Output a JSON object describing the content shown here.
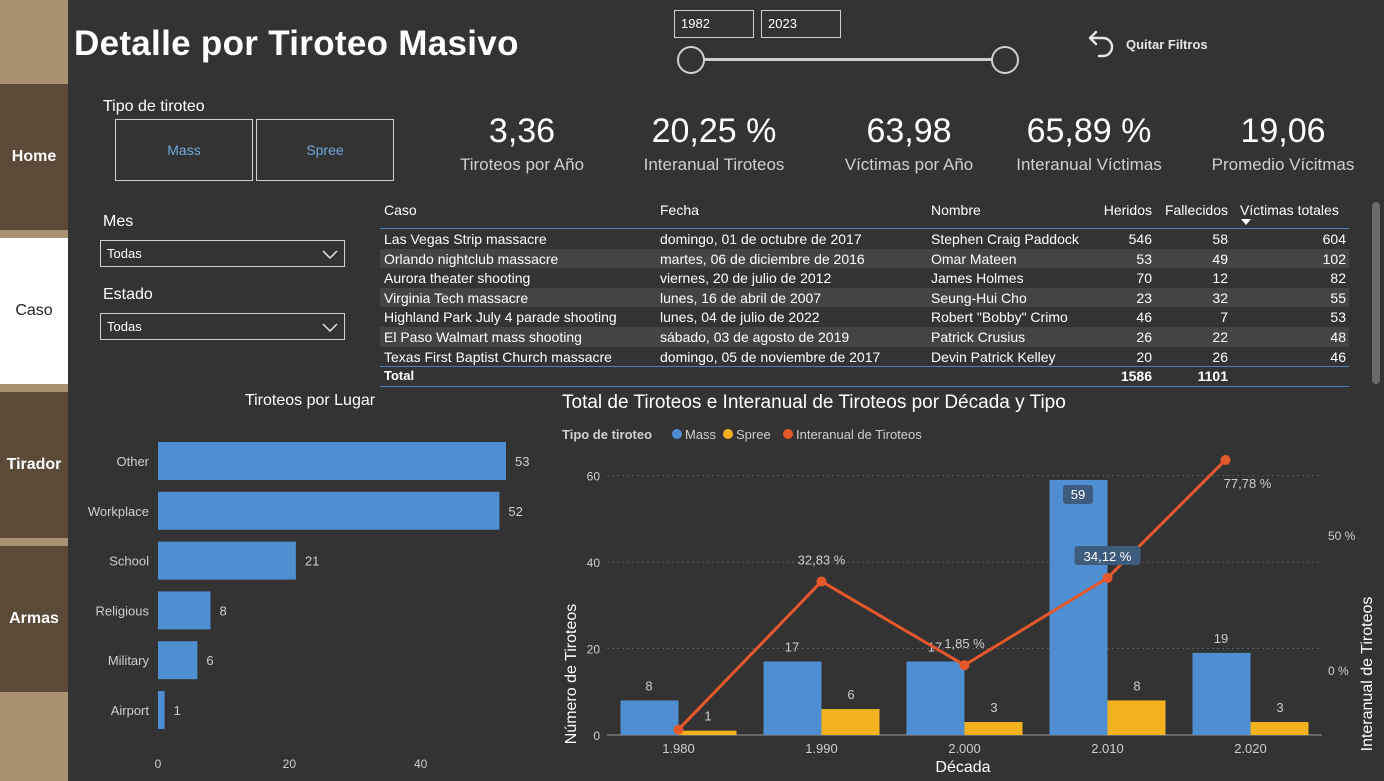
{
  "title": "Detalle por Tiroteo Masivo",
  "sidebar": {
    "items": [
      {
        "label": "Home"
      },
      {
        "label": "Caso"
      },
      {
        "label": "Tirador"
      },
      {
        "label": "Armas"
      }
    ]
  },
  "year_range": {
    "from": "1982",
    "to": "2023"
  },
  "clear_filters_label": "Quitar Filtros",
  "slicers": {
    "type_title": "Tipo de tiroteo",
    "type_options": [
      "Mass",
      "Spree"
    ],
    "month_title": "Mes",
    "month_value": "Todas",
    "state_title": "Estado",
    "state_value": "Todas"
  },
  "kpis": [
    {
      "value": "3,36",
      "label": "Tiroteos por Año"
    },
    {
      "value": "20,25 %",
      "label": "Interanual Tiroteos"
    },
    {
      "value": "63,98",
      "label": "Víctimas por Año"
    },
    {
      "value": "65,89 %",
      "label": "Interanual Víctimas"
    },
    {
      "value": "19,06",
      "label": "Promedio Vícitmas"
    }
  ],
  "table": {
    "headers": [
      "Caso",
      "Fecha",
      "Nombre",
      "Heridos",
      "Fallecidos",
      "Víctimas totales"
    ],
    "rows": [
      [
        "Las Vegas Strip massacre",
        "domingo, 01 de octubre de 2017",
        "Stephen Craig Paddock",
        "546",
        "58",
        "604"
      ],
      [
        "Orlando nightclub massacre",
        "martes, 06 de diciembre de 2016",
        "Omar Mateen",
        "53",
        "49",
        "102"
      ],
      [
        "Aurora theater shooting",
        "viernes, 20 de julio de 2012",
        "James Holmes",
        "70",
        "12",
        "82"
      ],
      [
        "Virginia Tech massacre",
        "lunes, 16 de abril de 2007",
        "Seung-Hui Cho",
        "23",
        "32",
        "55"
      ],
      [
        "Highland Park July 4 parade shooting",
        "lunes, 04 de julio de 2022",
        "Robert \"Bobby\" Crimo",
        "46",
        "7",
        "53"
      ],
      [
        "El Paso Walmart mass shooting",
        "sábado, 03 de agosto de 2019",
        "Patrick Crusius",
        "26",
        "22",
        "48"
      ],
      [
        "Texas First Baptist Church massacre",
        "domingo, 05 de noviembre de 2017",
        "Devin Patrick Kelley",
        "20",
        "26",
        "46"
      ]
    ],
    "total": {
      "label": "Total",
      "heridos": "1586",
      "fallecidos": "1101"
    }
  },
  "chart_data": [
    {
      "type": "bar",
      "orientation": "horizontal",
      "title": "Tiroteos por Lugar",
      "categories": [
        "Other",
        "Workplace",
        "School",
        "Religious",
        "Military",
        "Airport"
      ],
      "values": [
        53,
        52,
        21,
        8,
        6,
        1
      ],
      "data_labels": [
        "53",
        "52",
        "21",
        "8",
        "6",
        "1"
      ],
      "xlim": [
        0,
        53
      ],
      "xticks": [
        0,
        20,
        40
      ],
      "xtick_labels": [
        "0",
        "20",
        "40"
      ],
      "color": "#4f8ed0"
    },
    {
      "type": "bar",
      "title": "Total de Tiroteos e Interanual de Tiroteos por Década y Tipo",
      "legend_title": "Tipo de tiroteo",
      "legend_position": "top-left",
      "categories": [
        "1.980",
        "1.990",
        "2.000",
        "2.010",
        "2.020"
      ],
      "xlabel": "Década",
      "ylabel": "Número de Tiroteos",
      "y2label": "Interanual de Tiroteos",
      "ylim": [
        0,
        65
      ],
      "yticks": [
        0,
        20,
        40,
        60
      ],
      "ytick_labels": [
        "0",
        "20",
        "40",
        "60"
      ],
      "y2lim": [
        -24,
        80
      ],
      "y2ticks": [
        0,
        50
      ],
      "y2tick_labels": [
        "0 %",
        "50 %"
      ],
      "series": [
        {
          "name": "Mass",
          "color": "#4f8ed0",
          "values": [
            8,
            17,
            17,
            59,
            19
          ],
          "labels": [
            "8",
            "17",
            "17",
            "59",
            "19"
          ]
        },
        {
          "name": "Spree",
          "color": "#f5b21f",
          "values": [
            1,
            6,
            3,
            8,
            3
          ],
          "labels": [
            "1",
            "6",
            "3",
            "8",
            "3"
          ]
        },
        {
          "name": "Interanual de Tiroteos",
          "type": "line",
          "axis": "y2",
          "color": "#e5582b",
          "values": [
            -22,
            32.83,
            1.85,
            34.12,
            77.78
          ],
          "labels": [
            "",
            "32,83 %",
            "1,85 %",
            "34,12 %",
            "77,78 %"
          ]
        }
      ],
      "grid": true
    }
  ]
}
